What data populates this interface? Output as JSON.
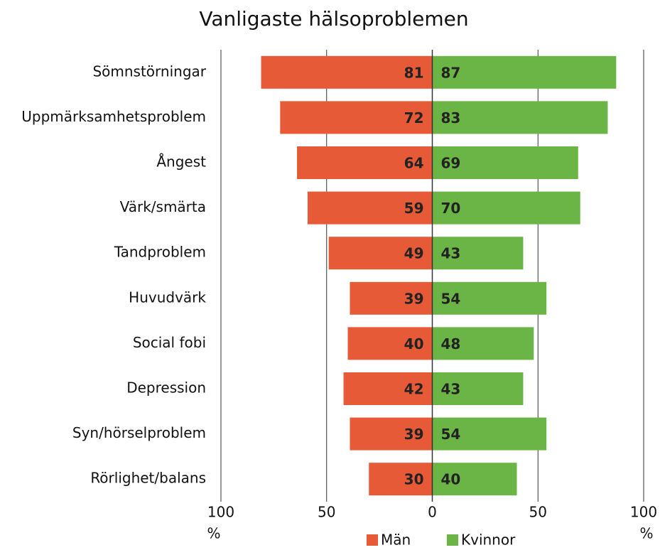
{
  "chart_data": {
    "type": "butterfly",
    "title": "Vanligaste hälsoproblemen",
    "categories": [
      "Sömnstörningar",
      "Uppmärksamhetsproblem",
      "Ångest",
      "Värk/smärta",
      "Tandproblem",
      "Huvudvärk",
      "Social fobi",
      "Depression",
      "Syn/hörselproblem",
      "Rörlighet/balans"
    ],
    "series": [
      {
        "name": "Män",
        "color": "#e65a37",
        "values": [
          81,
          72,
          64,
          59,
          49,
          39,
          40,
          42,
          39,
          30
        ]
      },
      {
        "name": "Kvinnor",
        "color": "#6ab545",
        "values": [
          87,
          83,
          69,
          70,
          43,
          54,
          48,
          43,
          54,
          40
        ]
      }
    ],
    "xlim": [
      -100,
      100
    ],
    "xticks": [
      {
        "value": -100,
        "label": "100"
      },
      {
        "value": -50,
        "label": "50"
      },
      0,
      50,
      100
    ],
    "xlabel": "%",
    "grid": true
  }
}
